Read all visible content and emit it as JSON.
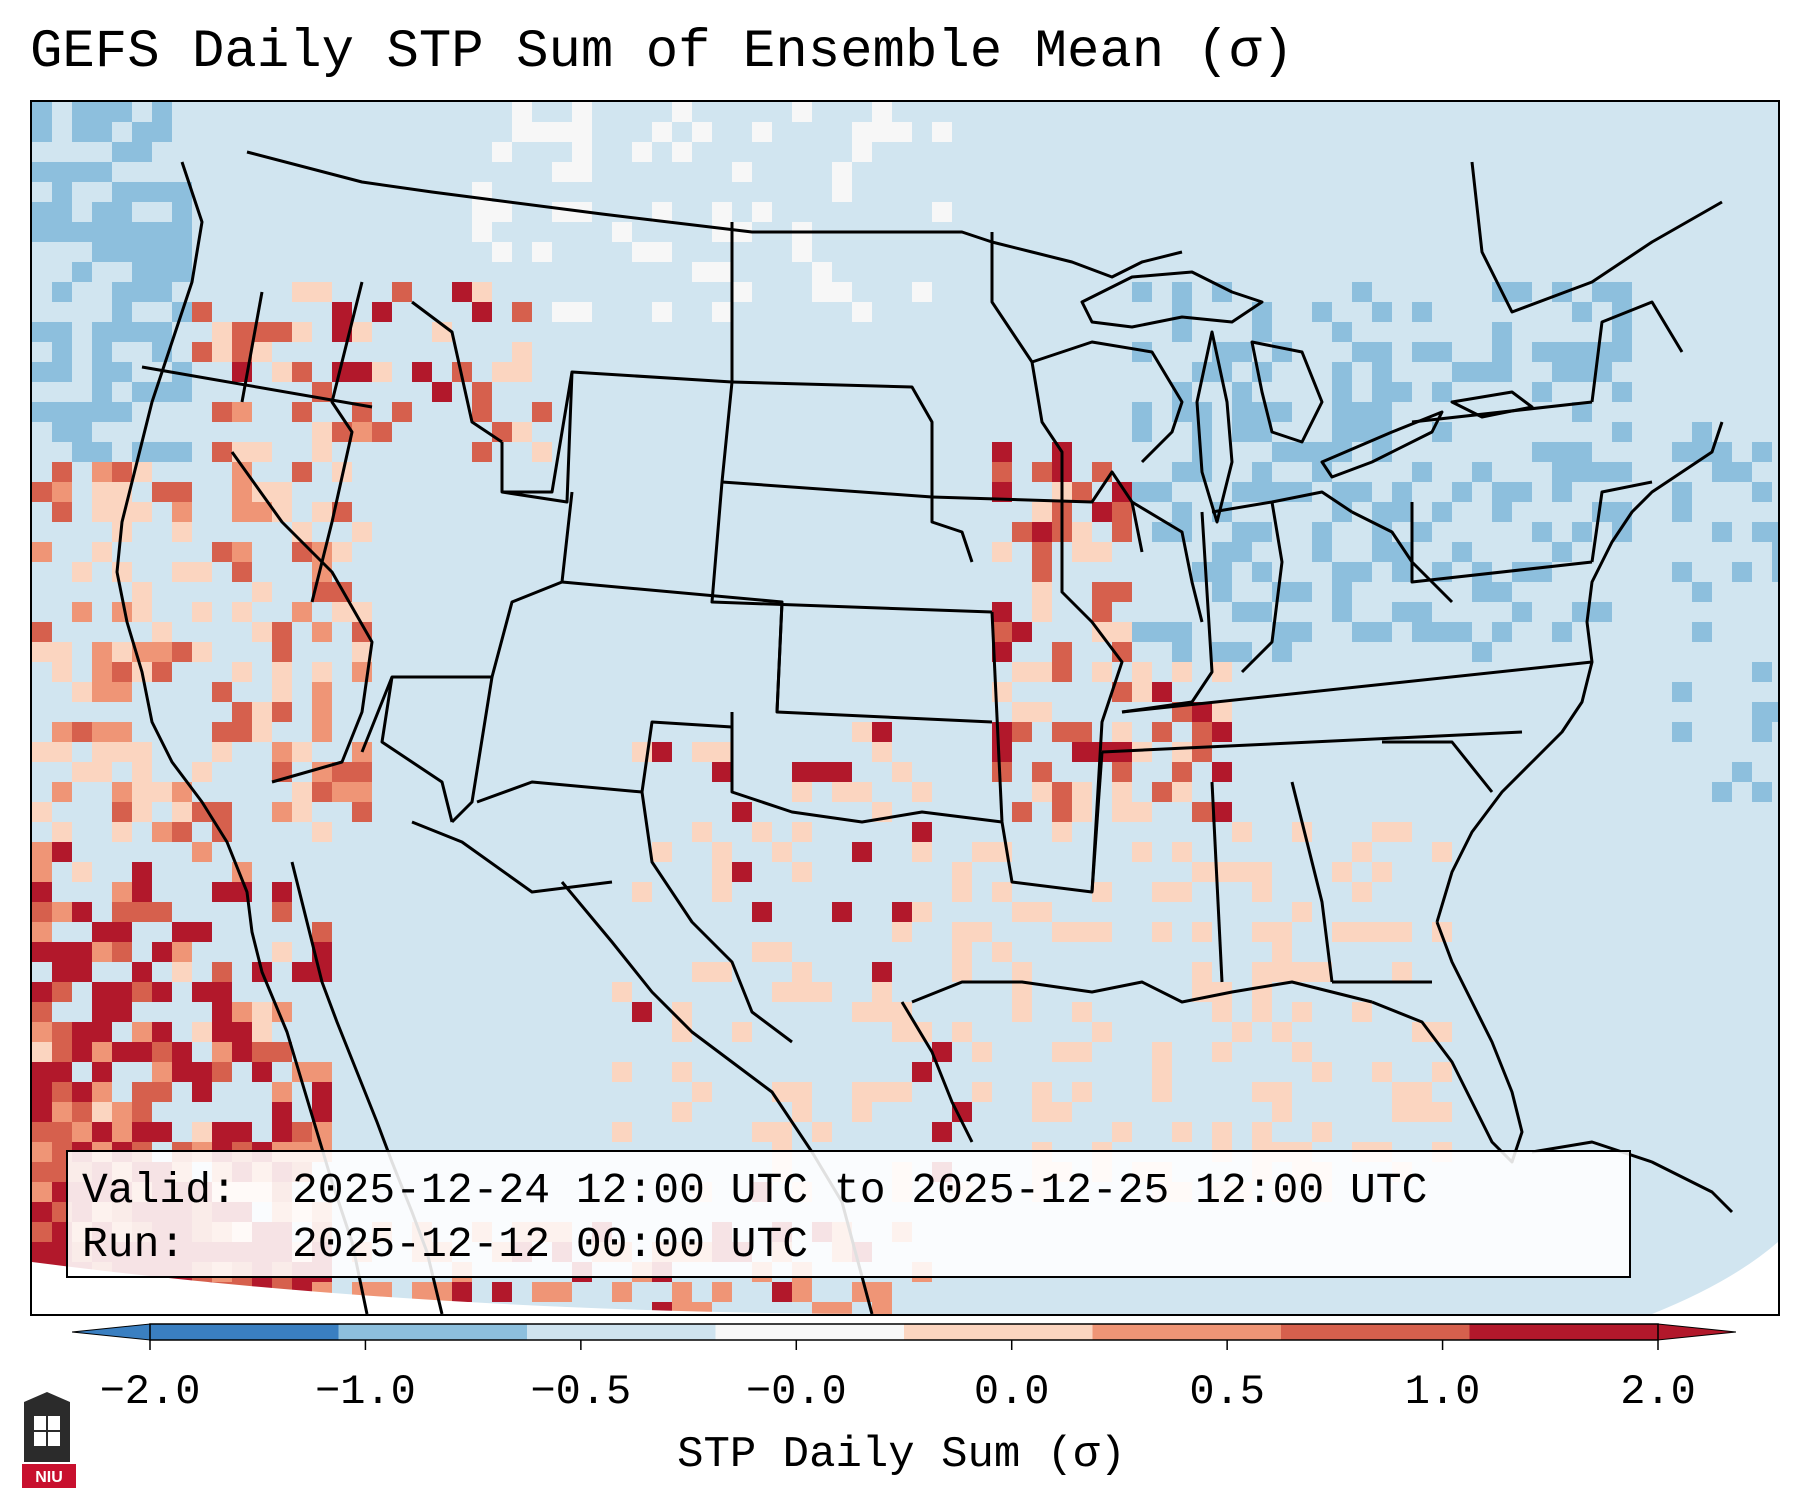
{
  "title": "GEFS Daily STP Sum of Ensemble Mean (σ)",
  "info": {
    "valid_key": "Valid:",
    "valid_value": "2025-12-24 12:00 UTC to 2025-12-25 12:00 UTC",
    "run_key": "Run:",
    "run_value": "2025-12-12 00:00 UTC"
  },
  "colorbar": {
    "label": "STP Daily Sum (σ)",
    "ticks": [
      "−2.0",
      "−1.0",
      "−0.5",
      "−0.0",
      "0.0",
      "0.5",
      "1.0",
      "2.0"
    ],
    "colors": [
      "#3a7fc1",
      "#8dbfdd",
      "#cfe3ef",
      "#f7f7f7",
      "#fbd5c0",
      "#ef9576",
      "#d6604d",
      "#b2182b"
    ]
  },
  "map": {
    "background_color": "#d1e5f0",
    "ocean_color": "#d1e5f0",
    "region": "Continental United States, northern Mexico, Gulf of Mexico"
  },
  "logo": {
    "text": "NIU"
  }
}
